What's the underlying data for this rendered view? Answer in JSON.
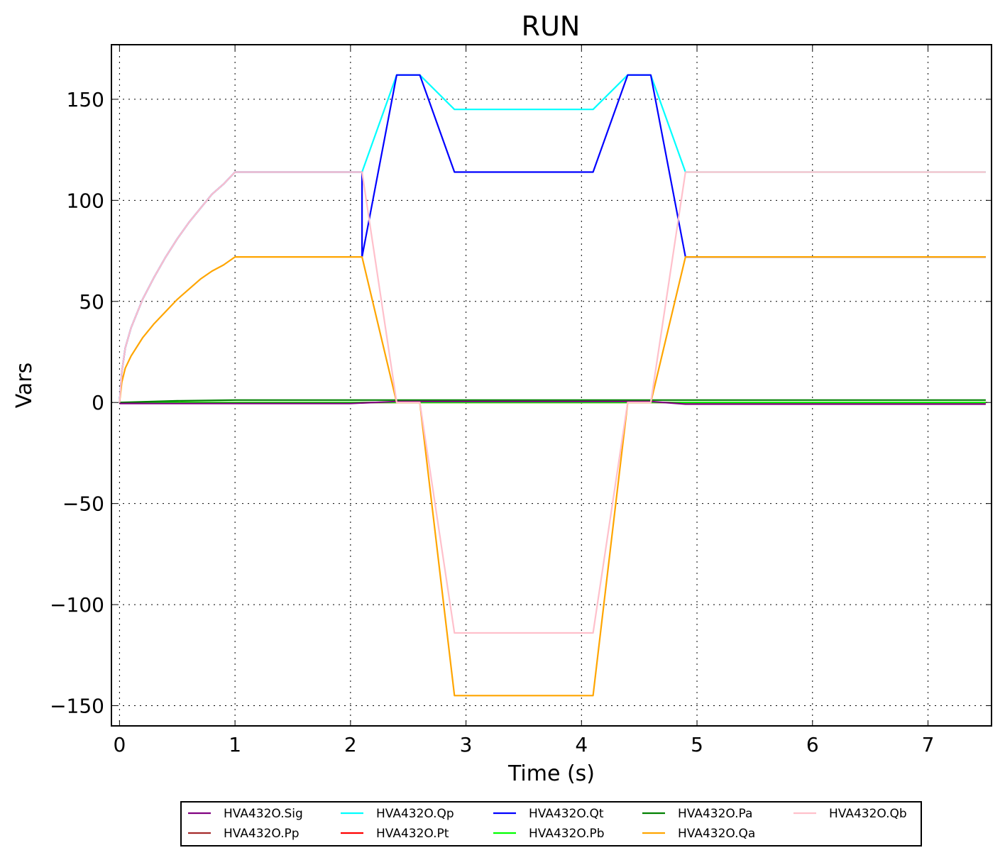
{
  "chart_data": {
    "type": "line",
    "title": "RUN",
    "xlabel": "Time (s)",
    "ylabel": "Vars",
    "xlim": [
      -0.07,
      7.55
    ],
    "ylim": [
      -160,
      177
    ],
    "xticks": [
      0,
      1,
      2,
      3,
      4,
      5,
      6,
      7
    ],
    "xtick_labels": [
      "0",
      "1",
      "2",
      "3",
      "4",
      "5",
      "6",
      "7"
    ],
    "yticks": [
      150,
      100,
      50,
      0,
      -50,
      -100,
      -150
    ],
    "ytick_labels": [
      "150",
      "100",
      "50",
      "0",
      "−50",
      "−100",
      "−150"
    ],
    "grid": true,
    "legend_position": "bottom-outside",
    "series": [
      {
        "name": "HVA432O.Sig",
        "color": "#800080",
        "points": [
          [
            0,
            -0.5
          ],
          [
            2.0,
            -0.5
          ],
          [
            2.4,
            0.5
          ],
          [
            4.6,
            0.5
          ],
          [
            4.9,
            -0.8
          ],
          [
            7.5,
            -0.8
          ]
        ]
      },
      {
        "name": "HVA432O.Pp",
        "color": "#a52a2a",
        "points": [
          [
            0,
            0
          ],
          [
            7.5,
            0
          ]
        ]
      },
      {
        "name": "HVA432O.Pt",
        "color": "#ff0000",
        "points": [
          [
            0,
            0
          ],
          [
            7.5,
            0
          ]
        ]
      },
      {
        "name": "HVA432O.Pb",
        "color": "#00ff00",
        "points": [
          [
            0,
            0
          ],
          [
            7.5,
            0
          ]
        ]
      },
      {
        "name": "HVA432O.Pa",
        "color": "#008000",
        "points": [
          [
            0,
            0
          ],
          [
            0.5,
            0.8
          ],
          [
            1.0,
            1.2
          ],
          [
            7.5,
            1.2
          ]
        ]
      },
      {
        "name": "HVA432O.Qp",
        "color": "#00ffff",
        "points": [
          [
            0,
            0
          ],
          [
            0.02,
            15
          ],
          [
            0.05,
            27
          ],
          [
            0.1,
            37
          ],
          [
            0.2,
            51
          ],
          [
            0.3,
            62
          ],
          [
            0.4,
            72
          ],
          [
            0.5,
            81
          ],
          [
            0.6,
            89
          ],
          [
            0.7,
            96
          ],
          [
            0.8,
            103
          ],
          [
            0.9,
            108
          ],
          [
            1.0,
            114
          ],
          [
            2.1,
            114
          ],
          [
            2.4,
            162
          ],
          [
            2.6,
            162
          ],
          [
            2.9,
            145
          ],
          [
            4.1,
            145
          ],
          [
            4.4,
            162
          ],
          [
            4.6,
            162
          ],
          [
            4.9,
            114
          ],
          [
            7.5,
            114
          ]
        ]
      },
      {
        "name": "HVA432O.Qt",
        "color": "#0000ff",
        "points": [
          [
            0,
            0
          ],
          [
            0.02,
            15
          ],
          [
            0.05,
            27
          ],
          [
            0.1,
            37
          ],
          [
            0.2,
            51
          ],
          [
            0.3,
            62
          ],
          [
            0.4,
            72
          ],
          [
            0.5,
            81
          ],
          [
            0.6,
            89
          ],
          [
            0.7,
            96
          ],
          [
            0.8,
            103
          ],
          [
            0.9,
            108
          ],
          [
            1.0,
            114
          ],
          [
            2.1,
            114
          ],
          [
            2.1,
            72
          ],
          [
            2.4,
            162
          ],
          [
            2.6,
            162
          ],
          [
            2.9,
            114
          ],
          [
            4.1,
            114
          ],
          [
            4.4,
            162
          ],
          [
            4.6,
            162
          ],
          [
            4.9,
            72
          ],
          [
            7.5,
            72
          ]
        ]
      },
      {
        "name": "HVA432O.Qa",
        "color": "#ffa500",
        "points": [
          [
            0,
            0
          ],
          [
            0.02,
            10
          ],
          [
            0.05,
            17
          ],
          [
            0.1,
            23
          ],
          [
            0.2,
            32
          ],
          [
            0.3,
            39
          ],
          [
            0.4,
            45
          ],
          [
            0.5,
            51
          ],
          [
            0.6,
            56
          ],
          [
            0.7,
            61
          ],
          [
            0.8,
            65
          ],
          [
            0.9,
            68
          ],
          [
            1.0,
            72
          ],
          [
            2.1,
            72
          ],
          [
            2.4,
            0
          ],
          [
            2.6,
            0
          ],
          [
            2.9,
            -145
          ],
          [
            4.1,
            -145
          ],
          [
            4.4,
            0
          ],
          [
            4.6,
            0
          ],
          [
            4.9,
            72
          ],
          [
            7.5,
            72
          ]
        ]
      },
      {
        "name": "HVA432O.Qb",
        "color": "#ffc0cb",
        "points": [
          [
            0,
            0
          ],
          [
            0.02,
            15
          ],
          [
            0.05,
            27
          ],
          [
            0.1,
            37
          ],
          [
            0.2,
            51
          ],
          [
            0.3,
            62
          ],
          [
            0.4,
            72
          ],
          [
            0.5,
            81
          ],
          [
            0.6,
            89
          ],
          [
            0.7,
            96
          ],
          [
            0.8,
            103
          ],
          [
            0.9,
            108
          ],
          [
            1.0,
            114
          ],
          [
            2.1,
            114
          ],
          [
            2.4,
            0
          ],
          [
            2.6,
            0
          ],
          [
            2.9,
            -114
          ],
          [
            4.1,
            -114
          ],
          [
            4.4,
            0
          ],
          [
            4.6,
            0
          ],
          [
            4.9,
            114
          ],
          [
            7.5,
            114
          ]
        ]
      }
    ],
    "legend_order": [
      "HVA432O.Sig",
      "HVA432O.Qp",
      "HVA432O.Qt",
      "HVA432O.Pa",
      "HVA432O.Qb",
      "HVA432O.Pp",
      "HVA432O.Pt",
      "HVA432O.Pb",
      "HVA432O.Qa"
    ]
  }
}
